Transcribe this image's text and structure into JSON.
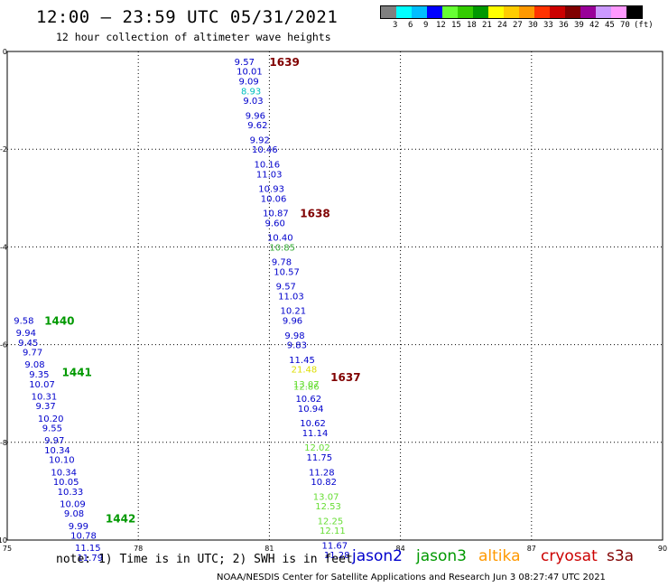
{
  "header": {
    "title": "12:00 – 23:59 UTC 05/31/2021",
    "subtitle": "12 hour collection of altimeter wave heights"
  },
  "legend": {
    "colors": [
      "#808080",
      "#00ffff",
      "#00bfff",
      "#0000ff",
      "#66ff33",
      "#33cc00",
      "#009900",
      "#ffff00",
      "#ffcc00",
      "#ff9900",
      "#ff3300",
      "#cc0000",
      "#800000",
      "#990099",
      "#cc99ff",
      "#ff99ff",
      "#000000"
    ],
    "labels": [
      "3",
      "6",
      "9",
      "12",
      "15",
      "18",
      "21",
      "24",
      "27",
      "30",
      "33",
      "36",
      "39",
      "42",
      "45",
      "70"
    ],
    "unit": "(ft)"
  },
  "footer": {
    "note": "note:  1) Time is in UTC; 2) SWH is in feet",
    "credit": "NOAA/NESDIS Center for Satellite Applications and Research    Jun  3 08:27:47 UTC 2021"
  },
  "satellites": [
    {
      "name": "jason2",
      "color": "#0000cc"
    },
    {
      "name": "jason3",
      "color": "#009900"
    },
    {
      "name": "altika",
      "color": "#ff9900"
    },
    {
      "name": "cryosat",
      "color": "#cc0000"
    },
    {
      "name": "s3a",
      "color": "#800000"
    }
  ],
  "chart_data": {
    "type": "scatter",
    "xlim": [
      75,
      90
    ],
    "ylim": [
      -10,
      0
    ],
    "xticks": [
      "75",
      "78",
      "81",
      "84",
      "87",
      "90"
    ],
    "yticks": [
      "0",
      "-2",
      "-4",
      "-6",
      "-8",
      "-10"
    ],
    "grid": true,
    "time_labels": [
      {
        "text": "1639",
        "x": 81.0,
        "y": -0.2,
        "color": "#800000"
      },
      {
        "text": "1638",
        "x": 81.7,
        "y": -3.3,
        "color": "#800000"
      },
      {
        "text": "1637",
        "x": 82.4,
        "y": -6.65,
        "color": "#800000"
      },
      {
        "text": "1440",
        "x": 75.85,
        "y": -5.5,
        "color": "#009900"
      },
      {
        "text": "1441",
        "x": 76.25,
        "y": -6.55,
        "color": "#009900"
      },
      {
        "text": "1442",
        "x": 77.25,
        "y": -9.55,
        "color": "#009900"
      }
    ],
    "series": [
      {
        "color_note": "s3a track",
        "points": [
          {
            "x": 80.2,
            "y": -0.2,
            "v": "9.57",
            "c": "#0000cc"
          },
          {
            "x": 80.25,
            "y": -0.4,
            "v": "10.01",
            "c": "#0000cc"
          },
          {
            "x": 80.3,
            "y": -0.6,
            "v": "9.09",
            "c": "#0000cc"
          },
          {
            "x": 80.35,
            "y": -0.8,
            "v": "8.93",
            "c": "#00bfbf"
          },
          {
            "x": 80.4,
            "y": -1.0,
            "v": "9.03",
            "c": "#0000cc"
          },
          {
            "x": 80.45,
            "y": -1.3,
            "v": "9.96",
            "c": "#0000cc"
          },
          {
            "x": 80.5,
            "y": -1.5,
            "v": "9.62",
            "c": "#0000cc"
          },
          {
            "x": 80.55,
            "y": -1.8,
            "v": "9.92",
            "c": "#0000cc"
          },
          {
            "x": 80.6,
            "y": -2.0,
            "v": "10.46",
            "c": "#0000cc"
          },
          {
            "x": 80.65,
            "y": -2.3,
            "v": "10.16",
            "c": "#0000cc"
          },
          {
            "x": 80.7,
            "y": -2.5,
            "v": "11.03",
            "c": "#0000cc"
          },
          {
            "x": 80.75,
            "y": -2.8,
            "v": "10.93",
            "c": "#0000cc"
          },
          {
            "x": 80.8,
            "y": -3.0,
            "v": "10.06",
            "c": "#0000cc"
          },
          {
            "x": 80.85,
            "y": -3.3,
            "v": "10.87",
            "c": "#0000cc"
          },
          {
            "x": 80.9,
            "y": -3.5,
            "v": "9.60",
            "c": "#0000cc"
          },
          {
            "x": 80.95,
            "y": -3.8,
            "v": "10.40",
            "c": "#0000cc"
          },
          {
            "x": 81.0,
            "y": -4.0,
            "v": "10.85",
            "c": "#33aa33"
          },
          {
            "x": 81.05,
            "y": -4.3,
            "v": "9.78",
            "c": "#0000cc"
          },
          {
            "x": 81.1,
            "y": -4.5,
            "v": "10.57",
            "c": "#0000cc"
          },
          {
            "x": 81.15,
            "y": -4.8,
            "v": "9.57",
            "c": "#0000cc"
          },
          {
            "x": 81.2,
            "y": -5.0,
            "v": "11.03",
            "c": "#0000cc"
          },
          {
            "x": 81.25,
            "y": -5.3,
            "v": "10.21",
            "c": "#0000cc"
          },
          {
            "x": 81.3,
            "y": -5.5,
            "v": "9.96",
            "c": "#0000cc"
          },
          {
            "x": 81.35,
            "y": -5.8,
            "v": "9.98",
            "c": "#0000cc"
          },
          {
            "x": 81.4,
            "y": -6.0,
            "v": "9.83",
            "c": "#0000cc"
          },
          {
            "x": 81.45,
            "y": -6.3,
            "v": "11.45",
            "c": "#0000cc"
          },
          {
            "x": 81.5,
            "y": -6.5,
            "v": "21.48",
            "c": "#dddd00"
          },
          {
            "x": 81.55,
            "y": -6.8,
            "v": "13.07",
            "c": "#66dd33"
          },
          {
            "x": 81.55,
            "y": -6.85,
            "v": "12.86",
            "c": "#66dd33"
          },
          {
            "x": 81.6,
            "y": -7.1,
            "v": "10.62",
            "c": "#0000cc"
          },
          {
            "x": 81.65,
            "y": -7.3,
            "v": "10.94",
            "c": "#0000cc"
          },
          {
            "x": 81.7,
            "y": -7.6,
            "v": "10.62",
            "c": "#0000cc"
          },
          {
            "x": 81.75,
            "y": -7.8,
            "v": "11.14",
            "c": "#0000cc"
          },
          {
            "x": 81.8,
            "y": -8.1,
            "v": "12.02",
            "c": "#66dd33"
          },
          {
            "x": 81.85,
            "y": -8.3,
            "v": "11.75",
            "c": "#0000cc"
          },
          {
            "x": 81.9,
            "y": -8.6,
            "v": "11.28",
            "c": "#0000cc"
          },
          {
            "x": 81.95,
            "y": -8.8,
            "v": "10.82",
            "c": "#0000cc"
          },
          {
            "x": 82.0,
            "y": -9.1,
            "v": "13.07",
            "c": "#66dd33"
          },
          {
            "x": 82.05,
            "y": -9.3,
            "v": "12.53",
            "c": "#66dd33"
          },
          {
            "x": 82.1,
            "y": -9.6,
            "v": "12.25",
            "c": "#66dd33"
          },
          {
            "x": 82.15,
            "y": -9.8,
            "v": "12.11",
            "c": "#66dd33"
          },
          {
            "x": 82.2,
            "y": -10.1,
            "v": "11.67",
            "c": "#0000cc"
          },
          {
            "x": 82.25,
            "y": -10.3,
            "v": "11.28",
            "c": "#0000cc"
          }
        ]
      },
      {
        "color_note": "jason3 track",
        "points": [
          {
            "x": 75.15,
            "y": -5.5,
            "v": "9.58",
            "c": "#0000cc"
          },
          {
            "x": 75.2,
            "y": -5.75,
            "v": "9.94",
            "c": "#0000cc"
          },
          {
            "x": 75.25,
            "y": -5.95,
            "v": "9.45",
            "c": "#0000cc"
          },
          {
            "x": 75.35,
            "y": -6.15,
            "v": "9.77",
            "c": "#0000cc"
          },
          {
            "x": 75.4,
            "y": -6.4,
            "v": "9.08",
            "c": "#0000cc"
          },
          {
            "x": 75.5,
            "y": -6.6,
            "v": "9.35",
            "c": "#0000cc"
          },
          {
            "x": 75.5,
            "y": -6.8,
            "v": "10.07",
            "c": "#0000cc"
          },
          {
            "x": 75.55,
            "y": -7.05,
            "v": "10.31",
            "c": "#0000cc"
          },
          {
            "x": 75.65,
            "y": -7.25,
            "v": "9.37",
            "c": "#0000cc"
          },
          {
            "x": 75.7,
            "y": -7.5,
            "v": "10.20",
            "c": "#0000cc"
          },
          {
            "x": 75.8,
            "y": -7.7,
            "v": "9.55",
            "c": "#0000cc"
          },
          {
            "x": 75.85,
            "y": -7.95,
            "v": "9.97",
            "c": "#0000cc"
          },
          {
            "x": 75.85,
            "y": -8.15,
            "v": "10.34",
            "c": "#0000cc"
          },
          {
            "x": 75.95,
            "y": -8.35,
            "v": "10.10",
            "c": "#0000cc"
          },
          {
            "x": 76.0,
            "y": -8.6,
            "v": "10.34",
            "c": "#0000cc"
          },
          {
            "x": 76.05,
            "y": -8.8,
            "v": "10.05",
            "c": "#0000cc"
          },
          {
            "x": 76.15,
            "y": -9.0,
            "v": "10.33",
            "c": "#0000cc"
          },
          {
            "x": 76.2,
            "y": -9.25,
            "v": "10.09",
            "c": "#0000cc"
          },
          {
            "x": 76.3,
            "y": -9.45,
            "v": "9.08",
            "c": "#0000cc"
          },
          {
            "x": 76.4,
            "y": -9.7,
            "v": "9.99",
            "c": "#0000cc"
          },
          {
            "x": 76.45,
            "y": -9.9,
            "v": "10.78",
            "c": "#0000cc"
          },
          {
            "x": 76.55,
            "y": -10.15,
            "v": "11.15",
            "c": "#0000cc"
          },
          {
            "x": 76.6,
            "y": -10.35,
            "v": "11.79",
            "c": "#0000cc"
          }
        ]
      }
    ]
  }
}
